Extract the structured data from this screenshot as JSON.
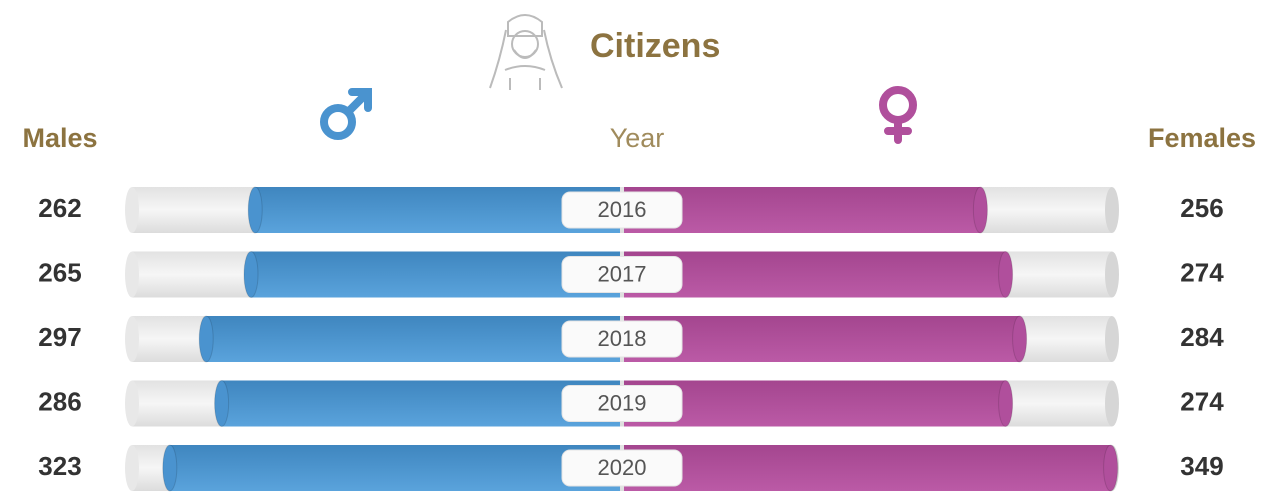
{
  "chart_data": {
    "type": "butterfly",
    "title": "Citizens",
    "category_label": "Year",
    "categories": [
      "2016",
      "2017",
      "2018",
      "2019",
      "2020"
    ],
    "series": [
      {
        "name": "Males",
        "color": "#4a93cf",
        "values": [
          262,
          265,
          297,
          286,
          323
        ]
      },
      {
        "name": "Females",
        "color": "#b04f9c",
        "values": [
          256,
          274,
          284,
          274,
          349
        ]
      }
    ],
    "xlim": [
      0,
      350
    ]
  }
}
